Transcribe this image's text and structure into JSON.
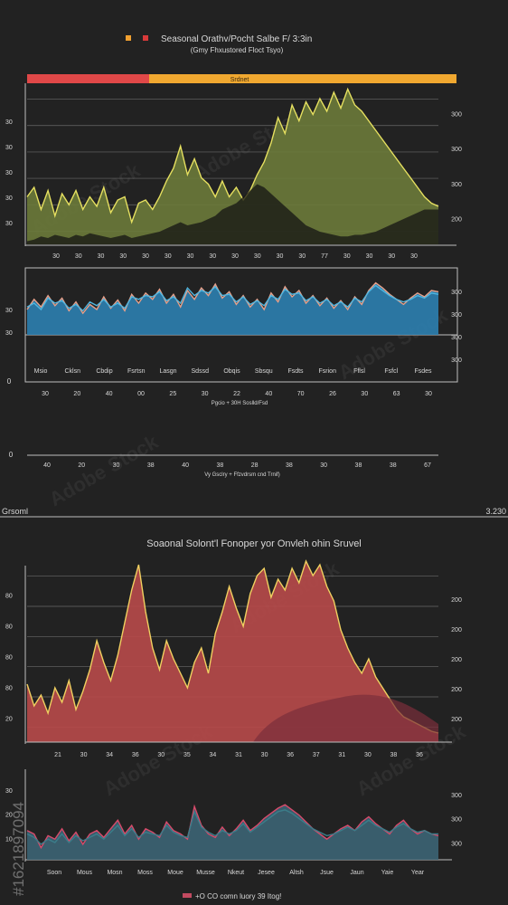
{
  "chart_data": [
    {
      "type": "area",
      "title": "Seasonal Orathv/Pocht Salbe F/ 3:3in",
      "subtitle": "(Gmy Fhxustored Floct Tsyo)",
      "legend_colors": [
        "#f0a030",
        "#d83a3a"
      ],
      "band": {
        "label": "Srdnet",
        "colors": [
          "#e04848",
          "#f0a830"
        ]
      },
      "left_ticks": [
        "30",
        "30",
        "30",
        "30",
        "30"
      ],
      "right_ticks": [
        "300",
        "300",
        "300",
        "200"
      ],
      "x_ticks": [
        "30",
        "30",
        "30",
        "30",
        "30",
        "30",
        "30",
        "30",
        "30",
        "30",
        "30",
        "30",
        "77",
        "30",
        "30",
        "30",
        "30"
      ],
      "series": [
        {
          "color": "#e6e060",
          "fill": "#6b7a3a",
          "values": [
            0.3,
            0.36,
            0.22,
            0.34,
            0.18,
            0.32,
            0.25,
            0.34,
            0.22,
            0.3,
            0.24,
            0.36,
            0.2,
            0.28,
            0.3,
            0.14,
            0.26,
            0.28,
            0.22,
            0.3,
            0.4,
            0.48,
            0.62,
            0.44,
            0.54,
            0.42,
            0.38,
            0.3,
            0.4,
            0.3,
            0.36,
            0.28,
            0.34,
            0.44,
            0.52,
            0.64,
            0.8,
            0.7,
            0.88,
            0.78,
            0.9,
            0.82,
            0.92,
            0.84,
            0.96,
            0.86,
            0.98,
            0.88,
            0.84,
            0.78,
            0.72,
            0.66,
            0.6,
            0.54,
            0.48,
            0.42,
            0.36,
            0.3,
            0.26,
            0.24
          ]
        }
      ],
      "shadow": [
        0.02,
        0.03,
        0.05,
        0.04,
        0.06,
        0.05,
        0.04,
        0.06,
        0.05,
        0.07,
        0.06,
        0.05,
        0.04,
        0.05,
        0.06,
        0.04,
        0.05,
        0.06,
        0.07,
        0.08,
        0.1,
        0.12,
        0.14,
        0.12,
        0.13,
        0.14,
        0.16,
        0.18,
        0.22,
        0.24,
        0.26,
        0.3,
        0.34,
        0.38,
        0.36,
        0.32,
        0.28,
        0.24,
        0.2,
        0.16,
        0.12,
        0.1,
        0.08,
        0.07,
        0.06,
        0.05,
        0.05,
        0.06,
        0.06,
        0.07,
        0.08,
        0.1,
        0.12,
        0.14,
        0.16,
        0.18,
        0.2,
        0.22,
        0.22,
        0.22
      ]
    },
    {
      "type": "area",
      "left_ticks": [
        "30",
        "30"
      ],
      "right_ticks": [
        "300",
        "300",
        "300",
        "300"
      ],
      "month_labels": [
        "Msio",
        "Cklsn",
        "Cbdip",
        "Fsrtsn",
        "Lasgn",
        "Sdssd",
        "Obqis",
        "Sbsqu",
        "Fsdts",
        "Fsrion",
        "Fflsl",
        "Fsfcl",
        "Fsdes"
      ],
      "x_ticks": [
        "30",
        "20",
        "40",
        "00",
        "25",
        "30",
        "22",
        "40",
        "70",
        "26",
        "30",
        "63",
        "30"
      ],
      "x_caption": "Pgcio + 30H Soslld/Fsd",
      "series": [
        {
          "color": "#e6a08a",
          "fill": "#2c7fb0",
          "values": [
            0.4,
            0.56,
            0.44,
            0.62,
            0.46,
            0.58,
            0.38,
            0.52,
            0.34,
            0.48,
            0.4,
            0.6,
            0.42,
            0.55,
            0.38,
            0.64,
            0.5,
            0.66,
            0.56,
            0.72,
            0.5,
            0.64,
            0.44,
            0.7,
            0.56,
            0.74,
            0.62,
            0.8,
            0.58,
            0.68,
            0.48,
            0.62,
            0.44,
            0.56,
            0.4,
            0.66,
            0.52,
            0.76,
            0.6,
            0.7,
            0.5,
            0.62,
            0.46,
            0.58,
            0.42,
            0.54,
            0.4,
            0.6,
            0.48,
            0.7,
            0.82,
            0.74,
            0.64,
            0.56,
            0.48,
            0.58,
            0.66,
            0.6,
            0.7,
            0.68
          ]
        },
        {
          "color": "#4fb6e0",
          "fill": "none",
          "values": [
            0.44,
            0.5,
            0.4,
            0.58,
            0.5,
            0.54,
            0.42,
            0.48,
            0.38,
            0.52,
            0.46,
            0.56,
            0.44,
            0.5,
            0.42,
            0.6,
            0.56,
            0.62,
            0.6,
            0.68,
            0.54,
            0.6,
            0.5,
            0.74,
            0.62,
            0.7,
            0.66,
            0.76,
            0.62,
            0.64,
            0.52,
            0.6,
            0.48,
            0.54,
            0.46,
            0.62,
            0.56,
            0.72,
            0.64,
            0.66,
            0.54,
            0.6,
            0.5,
            0.56,
            0.46,
            0.52,
            0.44,
            0.58,
            0.52,
            0.68,
            0.78,
            0.7,
            0.62,
            0.56,
            0.52,
            0.56,
            0.62,
            0.58,
            0.66,
            0.64
          ]
        }
      ]
    },
    {
      "type": "axis",
      "x_ticks": [
        "40",
        "20",
        "30",
        "38",
        "40",
        "38",
        "28",
        "38",
        "30",
        "38",
        "38",
        "67"
      ],
      "x_caption": "Vy Gsclry + Ffzvdrsm cnd Trnif)",
      "corner_label": "0"
    },
    {
      "type": "area",
      "title": "Soaonal Solont'l Fonoper yor Onvleh ohin Sruvel",
      "corner_left": "Grsoml",
      "corner_right": "3.230",
      "left_ticks": [
        "80",
        "80",
        "80",
        "80",
        "20"
      ],
      "right_ticks": [
        "200",
        "200",
        "200",
        "200",
        "200"
      ],
      "x_ticks": [
        "21",
        "30",
        "34",
        "36",
        "30",
        "35",
        "34",
        "31",
        "30",
        "36",
        "37",
        "31",
        "30",
        "38",
        "36"
      ],
      "series": [
        {
          "color": "#f0d060",
          "fill": "#b84a4a",
          "values": [
            0.32,
            0.2,
            0.26,
            0.16,
            0.3,
            0.22,
            0.34,
            0.18,
            0.28,
            0.4,
            0.56,
            0.44,
            0.34,
            0.48,
            0.66,
            0.84,
            0.98,
            0.72,
            0.52,
            0.4,
            0.56,
            0.46,
            0.38,
            0.3,
            0.44,
            0.52,
            0.38,
            0.6,
            0.72,
            0.86,
            0.74,
            0.64,
            0.82,
            0.92,
            0.96,
            0.8,
            0.9,
            0.84,
            0.96,
            0.88,
            1.0,
            0.92,
            0.98,
            0.86,
            0.78,
            0.62,
            0.52,
            0.44,
            0.38,
            0.46,
            0.36,
            0.3,
            0.24,
            0.18,
            0.14,
            0.12,
            0.1,
            0.08,
            0.06,
            0.05
          ]
        }
      ],
      "shadow": [
        0.0,
        0.0,
        0.0,
        0.0,
        0.0,
        0.0,
        0.0,
        0.0,
        0.0,
        0.0,
        0.0,
        0.0,
        0.0,
        0.0,
        0.0,
        0.0,
        0.0,
        0.0,
        0.0,
        0.0,
        0.0,
        0.0,
        0.0,
        0.0,
        0.0,
        0.0,
        0.0,
        0.0,
        0.0,
        0.0,
        0.0,
        0.0,
        0.0,
        0.0,
        0.0,
        0.0,
        0.0,
        0.0,
        0.0,
        0.0,
        0.0,
        0.0,
        0.0,
        0.0,
        0.0,
        0.0,
        0.0,
        0.0,
        0.0,
        0.0,
        0.0,
        0.0,
        0.0,
        0.0,
        0.0,
        0.0,
        0.0,
        0.0,
        0.0,
        0.0
      ]
    },
    {
      "type": "area",
      "left_ticks": [
        "30",
        "20",
        "10"
      ],
      "right_ticks": [
        "300",
        "300",
        "300"
      ],
      "month_labels": [
        "Soon",
        "Mous",
        "Mosn",
        "Moss",
        "Moue",
        "Musse",
        "Nkeut",
        "Jesee",
        "Altsh",
        "Jsue",
        "Jaun",
        "Yaie",
        "Year"
      ],
      "legend_text": "+O CO comn luory 39 Itog!",
      "legend_color": "#c24a60",
      "series": [
        {
          "color": "#d84a6a",
          "fill": "#3c6474",
          "values": [
            0.34,
            0.3,
            0.14,
            0.28,
            0.24,
            0.36,
            0.22,
            0.32,
            0.18,
            0.3,
            0.34,
            0.26,
            0.36,
            0.46,
            0.3,
            0.4,
            0.24,
            0.36,
            0.32,
            0.26,
            0.44,
            0.34,
            0.3,
            0.24,
            0.62,
            0.4,
            0.3,
            0.26,
            0.38,
            0.28,
            0.36,
            0.46,
            0.34,
            0.4,
            0.48,
            0.54,
            0.6,
            0.64,
            0.58,
            0.52,
            0.44,
            0.36,
            0.3,
            0.24,
            0.3,
            0.36,
            0.4,
            0.34,
            0.44,
            0.5,
            0.42,
            0.36,
            0.3,
            0.4,
            0.46,
            0.36,
            0.3,
            0.34,
            0.3,
            0.28
          ]
        },
        {
          "color": "#3b7d8a",
          "fill": "none",
          "values": [
            0.3,
            0.26,
            0.18,
            0.24,
            0.2,
            0.3,
            0.2,
            0.28,
            0.22,
            0.26,
            0.3,
            0.24,
            0.32,
            0.4,
            0.28,
            0.36,
            0.26,
            0.32,
            0.3,
            0.28,
            0.4,
            0.32,
            0.28,
            0.26,
            0.56,
            0.38,
            0.32,
            0.28,
            0.34,
            0.3,
            0.34,
            0.42,
            0.32,
            0.38,
            0.44,
            0.5,
            0.56,
            0.58,
            0.54,
            0.48,
            0.42,
            0.36,
            0.32,
            0.28,
            0.3,
            0.34,
            0.38,
            0.34,
            0.4,
            0.46,
            0.4,
            0.36,
            0.32,
            0.38,
            0.42,
            0.36,
            0.32,
            0.34,
            0.3,
            0.3
          ]
        }
      ]
    }
  ],
  "watermark": "Adobe Stock",
  "watermark_id": "#1621897094"
}
